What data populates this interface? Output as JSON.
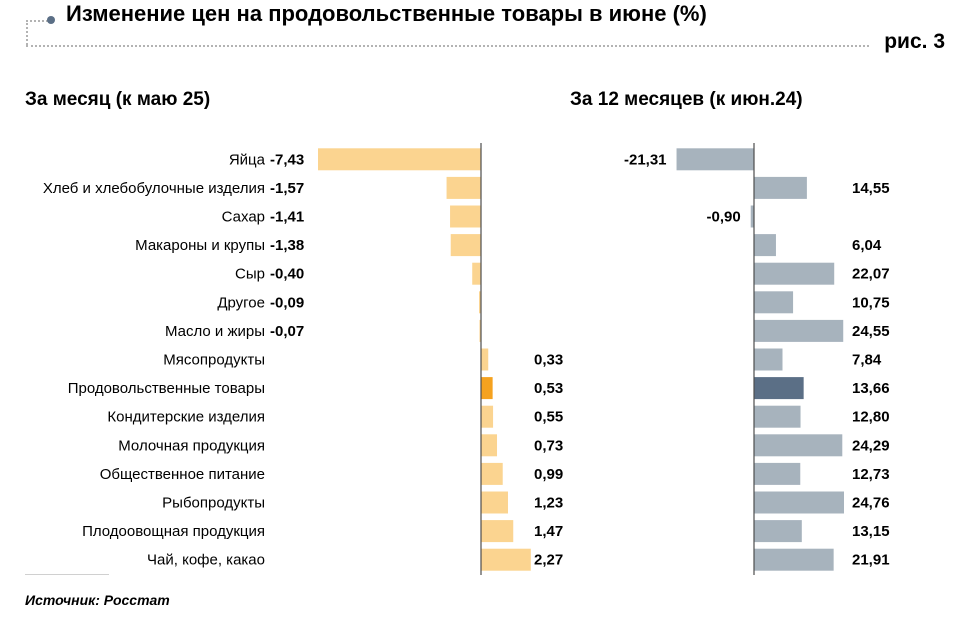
{
  "header": {
    "title": "Изменение цен на продовольственные товары в июне (%)",
    "figure_label": "рис. 3"
  },
  "source": "Источник: Росстат",
  "colors": {
    "left_bar": "#fbd490",
    "left_highlight": "#f5a21f",
    "right_bar": "#a7b3bd",
    "right_highlight": "#5b6f86",
    "axis": "#4d4d4d"
  },
  "chart_data": [
    {
      "type": "bar",
      "orientation": "horizontal",
      "title": "За месяц (к маю 25)",
      "categories": [
        "Яйца",
        "Хлеб и хлебобулочные изделия",
        "Сахар",
        "Макароны и крупы",
        "Сыр",
        "Другое",
        "Масло и жиры",
        "Мясопродукты",
        "Продовольственные товары",
        "Кондитерские изделия",
        "Молочная продукция",
        "Общественное питание",
        "Рыбопродукты",
        "Плодоовощная продукция",
        "Чай, кофе, какао"
      ],
      "values": [
        -7.43,
        -1.57,
        -1.41,
        -1.38,
        -0.4,
        -0.09,
        -0.07,
        0.33,
        0.53,
        0.55,
        0.73,
        0.99,
        1.23,
        1.47,
        2.27
      ],
      "value_labels": [
        "-7,43",
        "-1,57",
        "-1,41",
        "-1,38",
        "-0,40",
        "-0,09",
        "-0,07",
        "0,33",
        "0,53",
        "0,55",
        "0,73",
        "0,99",
        "1,23",
        "1,47",
        "2,27"
      ],
      "highlight": "Продовольственные товары",
      "xlim": [
        -7.43,
        2.27
      ]
    },
    {
      "type": "bar",
      "orientation": "horizontal",
      "title": "За 12 месяцев (к июн.24)",
      "categories": [
        "Яйца",
        "Хлеб и хлебобулочные изделия",
        "Сахар",
        "Макароны и крупы",
        "Сыр",
        "Другое",
        "Масло и жиры",
        "Мясопродукты",
        "Продовольственные товары",
        "Кондитерские изделия",
        "Молочная продукция",
        "Общественное питание",
        "Рыбопродукты",
        "Плодоовощная продукция",
        "Чай, кофе, какао"
      ],
      "values": [
        -21.31,
        14.55,
        -0.9,
        6.04,
        22.07,
        10.75,
        24.55,
        7.84,
        13.66,
        12.8,
        24.29,
        12.73,
        24.76,
        13.15,
        21.91
      ],
      "value_labels": [
        "-21,31",
        "14,55",
        "-0,90",
        "6,04",
        "22,07",
        "10,75",
        "24,55",
        "7,84",
        "13,66",
        "12,80",
        "24,29",
        "12,73",
        "24,76",
        "13,15",
        "21,91"
      ],
      "highlight": "Продовольственные товары",
      "xlim": [
        -21.31,
        24.76
      ]
    }
  ]
}
